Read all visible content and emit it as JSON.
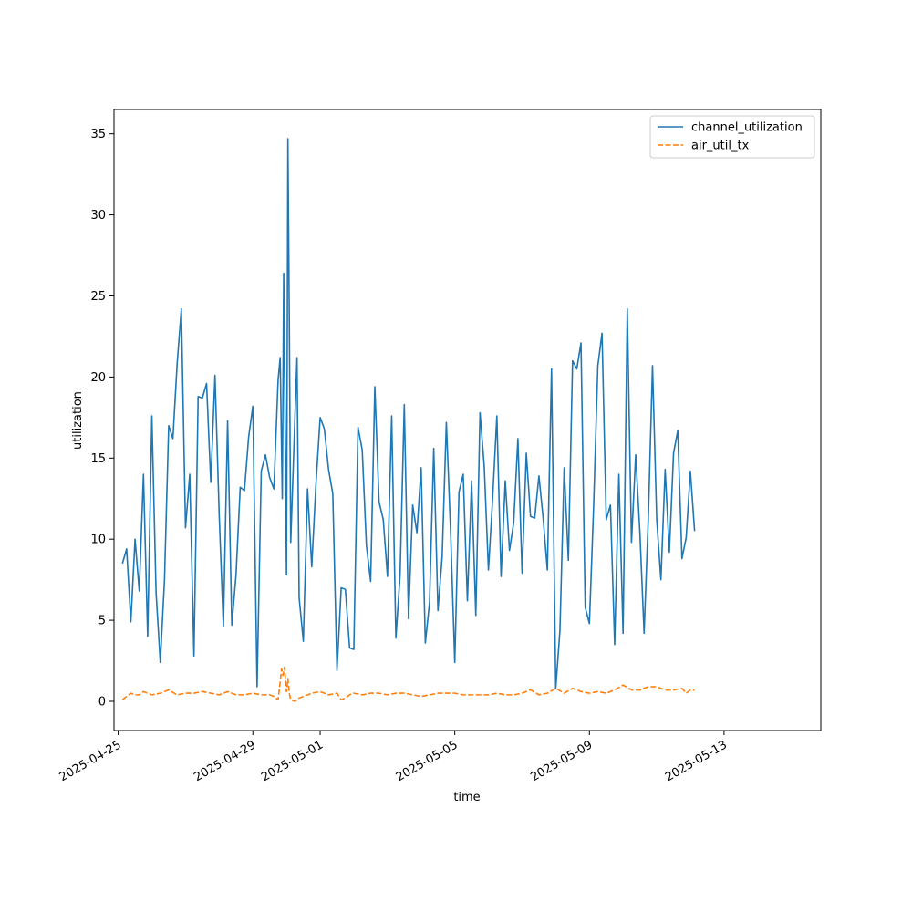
{
  "chart_data": {
    "type": "line",
    "title": "",
    "xlabel": "time",
    "ylabel": "utilization",
    "x_ticks": [
      "2025-04-25",
      "2025-04-29",
      "2025-05-01",
      "2025-05-05",
      "2025-05-09",
      "2025-05-13"
    ],
    "y_ticks": [
      0,
      5,
      10,
      15,
      20,
      25,
      30,
      35
    ],
    "ylim": [
      -1.8,
      36.5
    ],
    "xlim": [
      "2025-04-24T21:00",
      "2025-05-15T21:00"
    ],
    "legend_position": "top-right",
    "series": [
      {
        "name": "channel_utilization",
        "color": "#1f77b4",
        "dash": "solid",
        "points": [
          [
            "2025-04-25T03:00",
            8.5
          ],
          [
            "2025-04-25T06:00",
            9.4
          ],
          [
            "2025-04-25T09:00",
            4.9
          ],
          [
            "2025-04-25T12:00",
            10.0
          ],
          [
            "2025-04-25T15:00",
            6.8
          ],
          [
            "2025-04-25T18:00",
            14.0
          ],
          [
            "2025-04-25T21:00",
            4.0
          ],
          [
            "2025-04-26T00:00",
            17.6
          ],
          [
            "2025-04-26T03:00",
            6.7
          ],
          [
            "2025-04-26T06:00",
            2.4
          ],
          [
            "2025-04-26T09:00",
            7.5
          ],
          [
            "2025-04-26T12:00",
            17.0
          ],
          [
            "2025-04-26T15:00",
            16.2
          ],
          [
            "2025-04-26T18:00",
            20.8
          ],
          [
            "2025-04-26T21:00",
            24.2
          ],
          [
            "2025-04-27T00:00",
            10.7
          ],
          [
            "2025-04-27T03:00",
            14.0
          ],
          [
            "2025-04-27T06:00",
            2.8
          ],
          [
            "2025-04-27T09:00",
            18.8
          ],
          [
            "2025-04-27T12:00",
            18.7
          ],
          [
            "2025-04-27T15:00",
            19.6
          ],
          [
            "2025-04-27T18:00",
            13.5
          ],
          [
            "2025-04-27T21:00",
            20.1
          ],
          [
            "2025-04-28T00:00",
            11.5
          ],
          [
            "2025-04-28T03:00",
            4.6
          ],
          [
            "2025-04-28T06:00",
            17.3
          ],
          [
            "2025-04-28T09:00",
            4.7
          ],
          [
            "2025-04-28T12:00",
            7.8
          ],
          [
            "2025-04-28T15:00",
            13.2
          ],
          [
            "2025-04-28T18:00",
            13.0
          ],
          [
            "2025-04-28T21:00",
            16.3
          ],
          [
            "2025-04-29T00:00",
            18.2
          ],
          [
            "2025-04-29T03:00",
            0.9
          ],
          [
            "2025-04-29T06:00",
            14.2
          ],
          [
            "2025-04-29T09:00",
            15.2
          ],
          [
            "2025-04-29T12:00",
            13.8
          ],
          [
            "2025-04-29T15:00",
            13.1
          ],
          [
            "2025-04-29T18:00",
            19.8
          ],
          [
            "2025-04-29T19:30",
            21.2
          ],
          [
            "2025-04-29T21:00",
            12.5
          ],
          [
            "2025-04-29T22:00",
            26.4
          ],
          [
            "2025-04-30T00:00",
            7.8
          ],
          [
            "2025-04-30T01:00",
            34.7
          ],
          [
            "2025-04-30T02:00",
            23.4
          ],
          [
            "2025-04-30T03:00",
            9.8
          ],
          [
            "2025-04-30T06:00",
            17.5
          ],
          [
            "2025-04-30T07:30",
            21.2
          ],
          [
            "2025-04-30T09:00",
            6.4
          ],
          [
            "2025-04-30T12:00",
            3.7
          ],
          [
            "2025-04-30T15:00",
            13.1
          ],
          [
            "2025-04-30T18:00",
            8.3
          ],
          [
            "2025-04-30T21:00",
            13.4
          ],
          [
            "2025-05-01T00:00",
            17.5
          ],
          [
            "2025-05-01T03:00",
            16.8
          ],
          [
            "2025-05-01T06:00",
            14.3
          ],
          [
            "2025-05-01T09:00",
            12.8
          ],
          [
            "2025-05-01T12:00",
            1.9
          ],
          [
            "2025-05-01T15:00",
            7.0
          ],
          [
            "2025-05-01T18:00",
            6.9
          ],
          [
            "2025-05-01T21:00",
            3.3
          ],
          [
            "2025-05-02T00:00",
            3.2
          ],
          [
            "2025-05-02T03:00",
            16.9
          ],
          [
            "2025-05-02T06:00",
            15.5
          ],
          [
            "2025-05-02T09:00",
            9.6
          ],
          [
            "2025-05-02T12:00",
            7.4
          ],
          [
            "2025-05-02T15:00",
            19.4
          ],
          [
            "2025-05-02T18:00",
            12.3
          ],
          [
            "2025-05-02T21:00",
            11.2
          ],
          [
            "2025-05-03T00:00",
            7.7
          ],
          [
            "2025-05-03T03:00",
            17.6
          ],
          [
            "2025-05-03T06:00",
            3.9
          ],
          [
            "2025-05-03T09:00",
            7.8
          ],
          [
            "2025-05-03T12:00",
            18.3
          ],
          [
            "2025-05-03T15:00",
            5.1
          ],
          [
            "2025-05-03T18:00",
            12.1
          ],
          [
            "2025-05-03T21:00",
            10.4
          ],
          [
            "2025-05-04T00:00",
            14.4
          ],
          [
            "2025-05-04T03:00",
            3.6
          ],
          [
            "2025-05-04T06:00",
            6.1
          ],
          [
            "2025-05-04T09:00",
            15.6
          ],
          [
            "2025-05-04T12:00",
            5.6
          ],
          [
            "2025-05-04T15:00",
            8.9
          ],
          [
            "2025-05-04T18:00",
            17.2
          ],
          [
            "2025-05-04T21:00",
            10.5
          ],
          [
            "2025-05-05T00:00",
            2.4
          ],
          [
            "2025-05-05T03:00",
            12.9
          ],
          [
            "2025-05-05T06:00",
            14.0
          ],
          [
            "2025-05-05T09:00",
            6.2
          ],
          [
            "2025-05-05T12:00",
            13.6
          ],
          [
            "2025-05-05T15:00",
            5.3
          ],
          [
            "2025-05-05T18:00",
            17.8
          ],
          [
            "2025-05-05T21:00",
            14.5
          ],
          [
            "2025-05-06T00:00",
            8.1
          ],
          [
            "2025-05-06T03:00",
            12.5
          ],
          [
            "2025-05-06T06:00",
            17.6
          ],
          [
            "2025-05-06T09:00",
            7.7
          ],
          [
            "2025-05-06T12:00",
            13.6
          ],
          [
            "2025-05-06T15:00",
            9.3
          ],
          [
            "2025-05-06T18:00",
            11.0
          ],
          [
            "2025-05-06T21:00",
            16.2
          ],
          [
            "2025-05-07T00:00",
            7.9
          ],
          [
            "2025-05-07T03:00",
            15.3
          ],
          [
            "2025-05-07T06:00",
            11.4
          ],
          [
            "2025-05-07T09:00",
            11.3
          ],
          [
            "2025-05-07T12:00",
            13.9
          ],
          [
            "2025-05-07T15:00",
            11.3
          ],
          [
            "2025-05-07T18:00",
            8.1
          ],
          [
            "2025-05-07T21:00",
            20.5
          ],
          [
            "2025-05-08T00:00",
            0.8
          ],
          [
            "2025-05-08T03:00",
            4.4
          ],
          [
            "2025-05-08T06:00",
            14.4
          ],
          [
            "2025-05-08T09:00",
            8.7
          ],
          [
            "2025-05-08T12:00",
            21.0
          ],
          [
            "2025-05-08T15:00",
            20.5
          ],
          [
            "2025-05-08T18:00",
            22.1
          ],
          [
            "2025-05-08T21:00",
            5.8
          ],
          [
            "2025-05-09T00:00",
            4.8
          ],
          [
            "2025-05-09T03:00",
            12.0
          ],
          [
            "2025-05-09T06:00",
            20.7
          ],
          [
            "2025-05-09T09:00",
            22.7
          ],
          [
            "2025-05-09T12:00",
            11.2
          ],
          [
            "2025-05-09T15:00",
            12.1
          ],
          [
            "2025-05-09T18:00",
            3.5
          ],
          [
            "2025-05-09T21:00",
            14.0
          ],
          [
            "2025-05-10T00:00",
            4.2
          ],
          [
            "2025-05-10T03:00",
            24.2
          ],
          [
            "2025-05-10T06:00",
            9.8
          ],
          [
            "2025-05-10T09:00",
            15.2
          ],
          [
            "2025-05-10T12:00",
            10.4
          ],
          [
            "2025-05-10T15:00",
            4.2
          ],
          [
            "2025-05-10T18:00",
            11.3
          ],
          [
            "2025-05-10T21:00",
            20.7
          ],
          [
            "2025-05-11T00:00",
            11.2
          ],
          [
            "2025-05-11T03:00",
            7.5
          ],
          [
            "2025-05-11T06:00",
            14.3
          ],
          [
            "2025-05-11T09:00",
            9.2
          ],
          [
            "2025-05-11T12:00",
            15.3
          ],
          [
            "2025-05-11T15:00",
            16.7
          ],
          [
            "2025-05-11T18:00",
            8.8
          ],
          [
            "2025-05-11T21:00",
            10.1
          ],
          [
            "2025-05-12T00:00",
            14.2
          ],
          [
            "2025-05-12T03:00",
            10.5
          ]
        ]
      },
      {
        "name": "air_util_tx",
        "color": "#ff7f0e",
        "dash": "dashed",
        "points": [
          [
            "2025-04-25T03:00",
            0.1
          ],
          [
            "2025-04-25T06:00",
            0.3
          ],
          [
            "2025-04-25T09:00",
            0.5
          ],
          [
            "2025-04-25T12:00",
            0.4
          ],
          [
            "2025-04-25T15:00",
            0.4
          ],
          [
            "2025-04-25T18:00",
            0.6
          ],
          [
            "2025-04-26T00:00",
            0.4
          ],
          [
            "2025-04-26T06:00",
            0.5
          ],
          [
            "2025-04-26T12:00",
            0.7
          ],
          [
            "2025-04-26T18:00",
            0.4
          ],
          [
            "2025-04-27T00:00",
            0.5
          ],
          [
            "2025-04-27T06:00",
            0.5
          ],
          [
            "2025-04-27T12:00",
            0.6
          ],
          [
            "2025-04-27T18:00",
            0.5
          ],
          [
            "2025-04-28T00:00",
            0.4
          ],
          [
            "2025-04-28T06:00",
            0.6
          ],
          [
            "2025-04-28T12:00",
            0.4
          ],
          [
            "2025-04-28T18:00",
            0.4
          ],
          [
            "2025-04-29T00:00",
            0.5
          ],
          [
            "2025-04-29T06:00",
            0.4
          ],
          [
            "2025-04-29T12:00",
            0.4
          ],
          [
            "2025-04-29T15:00",
            0.3
          ],
          [
            "2025-04-29T18:00",
            0.1
          ],
          [
            "2025-04-29T19:30",
            1.2
          ],
          [
            "2025-04-29T20:30",
            2.0
          ],
          [
            "2025-04-29T21:30",
            1.6
          ],
          [
            "2025-04-29T22:30",
            2.1
          ],
          [
            "2025-04-30T00:00",
            0.6
          ],
          [
            "2025-04-30T01:00",
            1.4
          ],
          [
            "2025-04-30T02:00",
            0.5
          ],
          [
            "2025-04-30T03:00",
            0.1
          ],
          [
            "2025-04-30T06:00",
            0.0
          ],
          [
            "2025-04-30T09:00",
            0.2
          ],
          [
            "2025-04-30T12:00",
            0.3
          ],
          [
            "2025-04-30T18:00",
            0.5
          ],
          [
            "2025-05-01T00:00",
            0.6
          ],
          [
            "2025-05-01T06:00",
            0.4
          ],
          [
            "2025-05-01T12:00",
            0.5
          ],
          [
            "2025-05-01T15:00",
            0.1
          ],
          [
            "2025-05-01T18:00",
            0.2
          ],
          [
            "2025-05-01T21:00",
            0.4
          ],
          [
            "2025-05-02T00:00",
            0.5
          ],
          [
            "2025-05-02T06:00",
            0.4
          ],
          [
            "2025-05-02T12:00",
            0.5
          ],
          [
            "2025-05-02T18:00",
            0.5
          ],
          [
            "2025-05-03T00:00",
            0.4
          ],
          [
            "2025-05-03T06:00",
            0.5
          ],
          [
            "2025-05-03T12:00",
            0.5
          ],
          [
            "2025-05-03T18:00",
            0.4
          ],
          [
            "2025-05-04T00:00",
            0.3
          ],
          [
            "2025-05-04T06:00",
            0.4
          ],
          [
            "2025-05-04T12:00",
            0.5
          ],
          [
            "2025-05-04T18:00",
            0.5
          ],
          [
            "2025-05-05T00:00",
            0.5
          ],
          [
            "2025-05-05T06:00",
            0.4
          ],
          [
            "2025-05-05T12:00",
            0.4
          ],
          [
            "2025-05-05T18:00",
            0.4
          ],
          [
            "2025-05-06T00:00",
            0.4
          ],
          [
            "2025-05-06T06:00",
            0.5
          ],
          [
            "2025-05-06T12:00",
            0.4
          ],
          [
            "2025-05-06T18:00",
            0.4
          ],
          [
            "2025-05-07T00:00",
            0.5
          ],
          [
            "2025-05-07T06:00",
            0.7
          ],
          [
            "2025-05-07T12:00",
            0.4
          ],
          [
            "2025-05-07T18:00",
            0.5
          ],
          [
            "2025-05-08T00:00",
            0.8
          ],
          [
            "2025-05-08T06:00",
            0.5
          ],
          [
            "2025-05-08T12:00",
            0.8
          ],
          [
            "2025-05-08T18:00",
            0.6
          ],
          [
            "2025-05-09T00:00",
            0.5
          ],
          [
            "2025-05-09T06:00",
            0.6
          ],
          [
            "2025-05-09T12:00",
            0.5
          ],
          [
            "2025-05-09T18:00",
            0.7
          ],
          [
            "2025-05-10T00:00",
            1.0
          ],
          [
            "2025-05-10T06:00",
            0.7
          ],
          [
            "2025-05-10T12:00",
            0.7
          ],
          [
            "2025-05-10T18:00",
            0.9
          ],
          [
            "2025-05-11T00:00",
            0.9
          ],
          [
            "2025-05-11T06:00",
            0.7
          ],
          [
            "2025-05-11T12:00",
            0.7
          ],
          [
            "2025-05-11T18:00",
            0.8
          ],
          [
            "2025-05-11T21:00",
            0.5
          ],
          [
            "2025-05-12T00:00",
            0.7
          ],
          [
            "2025-05-12T03:00",
            0.7
          ]
        ]
      }
    ]
  }
}
